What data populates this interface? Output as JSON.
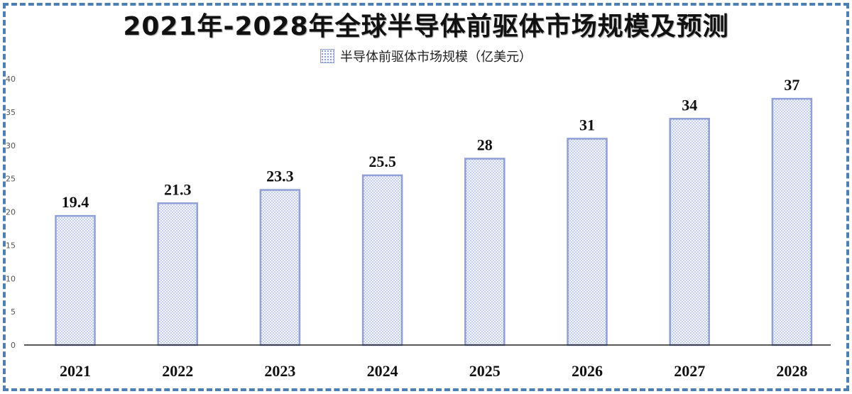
{
  "chart_data": {
    "type": "bar",
    "title": "2021年-2028年全球半导体前驱体市场规模及预测",
    "categories": [
      "2021",
      "2022",
      "2023",
      "2024",
      "2025",
      "2026",
      "2027",
      "2028"
    ],
    "series": [
      {
        "name": "半导体前驱体市场规模（亿美元）",
        "values": [
          19.4,
          21.3,
          23.3,
          25.5,
          28,
          31,
          34,
          37
        ],
        "labels": [
          "19.4",
          "21.3",
          "23.3",
          "25.5",
          "28",
          "31",
          "34",
          "37"
        ]
      }
    ],
    "ylim": [
      0,
      40
    ],
    "yticks": [
      "0",
      "5",
      "10",
      "15",
      "20",
      "25",
      "30",
      "35",
      "40"
    ],
    "xlabel": "",
    "ylabel": "",
    "grid": false,
    "legend": "top-center",
    "bar_fill": "#f4f6fd",
    "bar_stroke": "#8fa0d8",
    "dot_color": "#7f95d6",
    "border_color": "#4d7fb3"
  }
}
